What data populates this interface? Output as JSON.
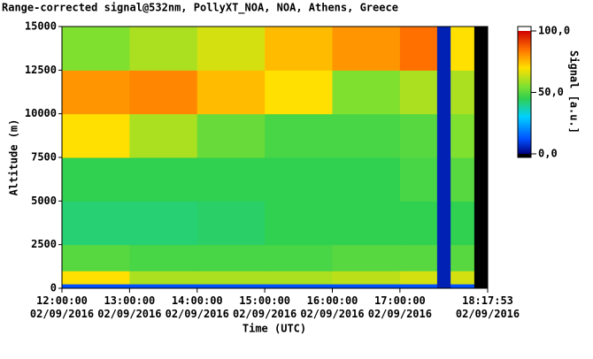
{
  "chart_data": {
    "type": "heatmap",
    "title": "Range-corrected signal@532nm, PollyXT_NOA, NOA, Athens, Greece",
    "xlabel": "Time (UTC)",
    "ylabel": "Altitude (m)",
    "colorbar_label": "Signal [a.u.]",
    "xlim": [
      12,
      18.298
    ],
    "xticks": [
      {
        "value": 12,
        "label": "12:00:00\n02/09/2016"
      },
      {
        "value": 13,
        "label": "13:00:00\n02/09/2016"
      },
      {
        "value": 14,
        "label": "14:00:00\n02/09/2016"
      },
      {
        "value": 15,
        "label": "15:00:00\n02/09/2016"
      },
      {
        "value": 16,
        "label": "16:00:00\n02/09/2016"
      },
      {
        "value": 17,
        "label": "17:00:00\n02/09/2016"
      },
      {
        "value": 18.298,
        "label": "18:17:53\n02/09/2016"
      }
    ],
    "ylim": [
      0,
      15000
    ],
    "yticks": [
      0,
      2500,
      5000,
      7500,
      10000,
      12500,
      15000
    ],
    "clim": [
      0,
      100
    ],
    "cticks": [
      {
        "value": 0,
        "label": "0,0"
      },
      {
        "value": 50,
        "label": "50,0"
      },
      {
        "value": 100,
        "label": "100,0"
      }
    ],
    "colorscale": [
      [
        0,
        "#00007f"
      ],
      [
        12,
        "#0050ff"
      ],
      [
        30,
        "#00d0ff"
      ],
      [
        45,
        "#30d050"
      ],
      [
        55,
        "#80e030"
      ],
      [
        70,
        "#ffe000"
      ],
      [
        85,
        "#ff7000"
      ],
      [
        100,
        "#d00000"
      ]
    ],
    "x_edges": [
      12,
      13,
      14,
      15,
      16,
      17,
      17.55,
      17.75,
      18.1,
      18.298
    ],
    "y_edges": [
      0,
      250,
      1000,
      2500,
      5000,
      7500,
      10000,
      12500,
      15000
    ],
    "z": [
      [
        12,
        12,
        12,
        12,
        12,
        12,
        5,
        12,
        null
      ],
      [
        70,
        60,
        60,
        60,
        62,
        65,
        5,
        65,
        null
      ],
      [
        50,
        48,
        48,
        48,
        50,
        50,
        5,
        50,
        null
      ],
      [
        42,
        42,
        43,
        45,
        45,
        45,
        5,
        45,
        null
      ],
      [
        45,
        45,
        45,
        45,
        45,
        48,
        5,
        50,
        null
      ],
      [
        70,
        60,
        52,
        48,
        48,
        50,
        5,
        55,
        null
      ],
      [
        80,
        82,
        75,
        70,
        55,
        60,
        5,
        60,
        null
      ],
      [
        55,
        60,
        65,
        75,
        80,
        85,
        5,
        70,
        null
      ]
    ]
  }
}
